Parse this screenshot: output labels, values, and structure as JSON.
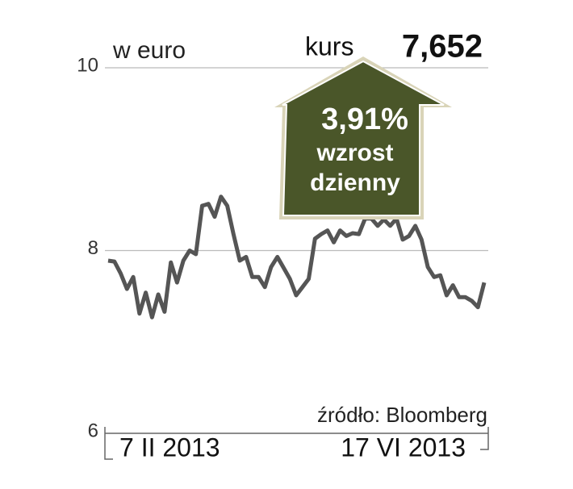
{
  "chart_data": {
    "type": "line",
    "unit_label": "w euro",
    "price_label": "kurs",
    "price_value": "7,652",
    "annotation": {
      "change": "3,91%",
      "line1": "wzrost",
      "line2": "dzienny"
    },
    "source": "źródło: Bloomberg",
    "categories": [
      "7 II 2013",
      null,
      null,
      null,
      null,
      null,
      null,
      null,
      null,
      null,
      null,
      null,
      null,
      null,
      null,
      null,
      null,
      null,
      null,
      null,
      null,
      null,
      null,
      null,
      null,
      null,
      null,
      null,
      null,
      null,
      null,
      null,
      null,
      null,
      null,
      null,
      null,
      null,
      null,
      null,
      null,
      null,
      null,
      null,
      null,
      null,
      null,
      null,
      null,
      null,
      null,
      null,
      null,
      null,
      null,
      null,
      null,
      null,
      null,
      null,
      "17 VI 2013"
    ],
    "values": [
      7.89,
      7.88,
      7.75,
      7.58,
      7.71,
      7.31,
      7.54,
      7.27,
      7.52,
      7.33,
      7.87,
      7.65,
      7.89,
      8.0,
      7.96,
      8.49,
      8.51,
      8.37,
      8.59,
      8.49,
      8.18,
      7.89,
      7.93,
      7.71,
      7.71,
      7.6,
      7.82,
      7.93,
      7.81,
      7.69,
      7.51,
      7.6,
      7.69,
      8.13,
      8.18,
      8.22,
      8.09,
      8.22,
      8.16,
      8.19,
      8.18,
      8.35,
      8.35,
      8.27,
      8.34,
      8.27,
      8.35,
      8.12,
      8.16,
      8.27,
      8.12,
      7.82,
      7.71,
      7.73,
      7.51,
      7.62,
      7.49,
      7.49,
      7.45,
      7.38,
      7.65
    ],
    "color": "#555555",
    "ylim": [
      6,
      10
    ],
    "yticks": [
      6,
      8,
      10
    ],
    "grid": true
  }
}
